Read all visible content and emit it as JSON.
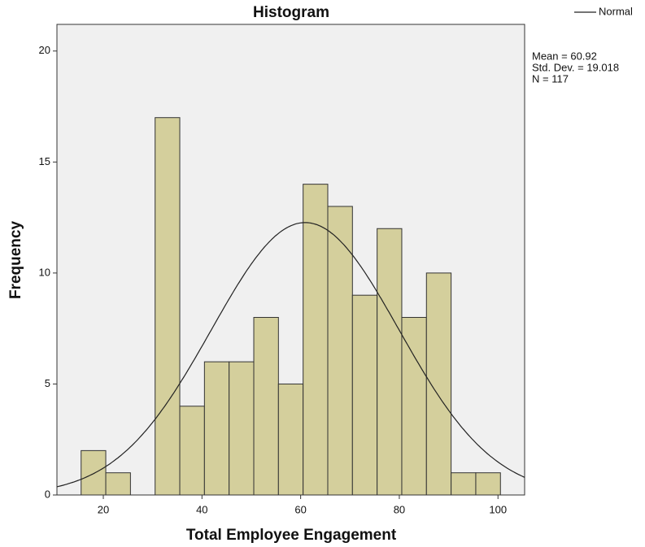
{
  "chart_data": {
    "type": "histogram",
    "title": "Histogram",
    "x_label": "Total Employee Engagement",
    "y_label": "Frequency",
    "bins": [
      15.5,
      20.5,
      25.5,
      30.5,
      35.5,
      40.5,
      45.5,
      50.5,
      55.5,
      60.5,
      65.5,
      70.5,
      75.5,
      80.5,
      85.5,
      90.5,
      95.5,
      100.5
    ],
    "counts": [
      2,
      1,
      0,
      17,
      4,
      6,
      6,
      8,
      5,
      14,
      13,
      9,
      12,
      8,
      10,
      1,
      1
    ],
    "color": "#d4cf9c",
    "edge_color": "#333333",
    "plot_background": "#f0f0f0",
    "xlim": [
      10.6,
      105.4
    ],
    "xticks": [
      20,
      40,
      60,
      80,
      100
    ],
    "ylim": [
      0,
      21.2
    ],
    "yticks": [
      0,
      5,
      10,
      15,
      20
    ],
    "legend": {
      "name": "Normal",
      "color": "#222222",
      "position": "top-right"
    },
    "stats": {
      "mean": {
        "value": 60.92,
        "label": "Mean = 60.92"
      },
      "std": {
        "value": 19.018,
        "label": "Std. Dev. = 19.018"
      },
      "n": {
        "value": 117,
        "label": "N = 117"
      }
    }
  }
}
